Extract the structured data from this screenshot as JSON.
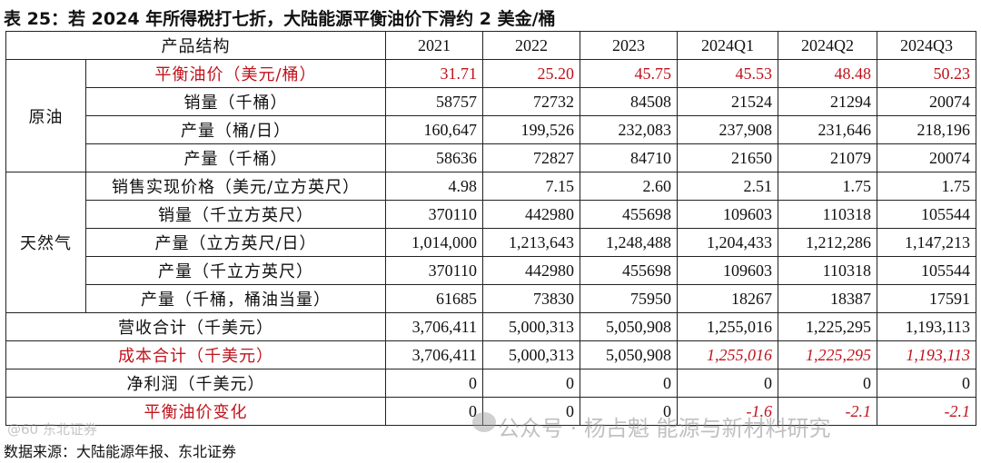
{
  "title": "表 25：若 2024 年所得税打七折，大陆能源平衡油价下滑约 2 美金/桶",
  "header": {
    "label": "产品结构",
    "periods": [
      "2021",
      "2022",
      "2023",
      "2024Q1",
      "2024Q2",
      "2024Q3"
    ]
  },
  "groups": {
    "oil": "原油",
    "gas": "天然气"
  },
  "rows": [
    {
      "label": "平衡油价（美元/桶）",
      "values": [
        "31.71",
        "25.20",
        "45.75",
        "45.53",
        "48.48",
        "50.23"
      ]
    },
    {
      "label": "销量（千桶）",
      "values": [
        "58757",
        "72732",
        "84508",
        "21524",
        "21294",
        "20074"
      ]
    },
    {
      "label": "产量（桶/日）",
      "values": [
        "160,647",
        "199,526",
        "232,083",
        "237,908",
        "231,646",
        "218,196"
      ]
    },
    {
      "label": "产量（千桶）",
      "values": [
        "58636",
        "72827",
        "84710",
        "21650",
        "21079",
        "20074"
      ]
    },
    {
      "label": "销售实现价格（美元/立方英尺）",
      "values": [
        "4.98",
        "7.15",
        "2.60",
        "2.51",
        "1.75",
        "1.75"
      ]
    },
    {
      "label": "销量（千立方英尺）",
      "values": [
        "370110",
        "442980",
        "455698",
        "109603",
        "110318",
        "105544"
      ]
    },
    {
      "label": "产量（立方英尺/日）",
      "values": [
        "1,014,000",
        "1,213,643",
        "1,248,488",
        "1,204,433",
        "1,212,286",
        "1,147,213"
      ]
    },
    {
      "label": "产量（千立方英尺）",
      "values": [
        "370110",
        "442980",
        "455698",
        "109603",
        "110318",
        "105544"
      ]
    },
    {
      "label": "产量（千桶，桶油当量）",
      "values": [
        "61685",
        "73830",
        "75950",
        "18267",
        "18387",
        "17591"
      ]
    },
    {
      "label": "营收合计（千美元）",
      "values": [
        "3,706,411",
        "5,000,313",
        "5,050,908",
        "1,255,016",
        "1,225,295",
        "1,193,113"
      ]
    },
    {
      "label": "成本合计（千美元）",
      "values": [
        "3,706,411",
        "5,000,313",
        "5,050,908",
        "1,255,016",
        "1,225,295",
        "1,193,113"
      ]
    },
    {
      "label": "净利润（千美元）",
      "values": [
        "0",
        "0",
        "0",
        "0",
        "0",
        "0"
      ]
    },
    {
      "label": "平衡油价变化",
      "values": [
        "0",
        "0",
        "0",
        "-1.6",
        "-2.1",
        "-2.1"
      ]
    }
  ],
  "source": "数据来源：大陆能源年报、东北证券",
  "watermark": "公众号 · 杨占魁 能源与新材料研究",
  "watermark_left": "@60 东北证券",
  "colors": {
    "highlight_red": "#c0131c"
  }
}
